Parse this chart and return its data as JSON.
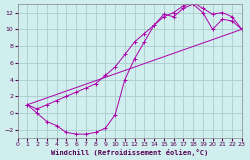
{
  "xlabel": "Windchill (Refroidissement éolien,°C)",
  "bg_color": "#d0eeee",
  "grid_color": "#aacccc",
  "line_color": "#aa00aa",
  "xlim": [
    0,
    23
  ],
  "ylim": [
    -3,
    13
  ],
  "xticks": [
    0,
    1,
    2,
    3,
    4,
    5,
    6,
    7,
    8,
    9,
    10,
    11,
    12,
    13,
    14,
    15,
    16,
    17,
    18,
    19,
    20,
    21,
    22,
    23
  ],
  "yticks": [
    -2,
    0,
    2,
    4,
    6,
    8,
    10,
    12
  ],
  "line1_x": [
    1,
    2,
    3,
    4,
    5,
    6,
    7,
    8,
    9,
    10,
    11,
    12,
    13,
    14,
    15,
    16,
    17,
    18,
    19,
    20,
    21,
    22,
    23
  ],
  "line1_y": [
    1,
    0,
    -1,
    -1.5,
    -2.3,
    -2.5,
    -2.5,
    -2.3,
    -1.8,
    -0.2,
    4.0,
    6.5,
    8.5,
    10.5,
    11.8,
    11.5,
    12.5,
    13.0,
    12.0,
    10.0,
    11.2,
    11.0,
    10.0
  ],
  "line2_x": [
    1,
    2,
    3,
    4,
    5,
    6,
    7,
    8,
    9,
    10,
    11,
    12,
    13,
    14,
    15,
    16,
    17,
    18,
    19,
    20,
    21,
    22,
    23
  ],
  "line2_y": [
    1,
    0.5,
    1.0,
    1.5,
    2.0,
    2.5,
    3.0,
    3.5,
    4.5,
    5.5,
    7.0,
    8.5,
    9.5,
    10.5,
    11.5,
    12.0,
    12.8,
    13.2,
    12.5,
    11.8,
    12.0,
    11.5,
    10.0
  ],
  "line3_x": [
    1,
    23
  ],
  "line3_y": [
    1,
    10
  ]
}
